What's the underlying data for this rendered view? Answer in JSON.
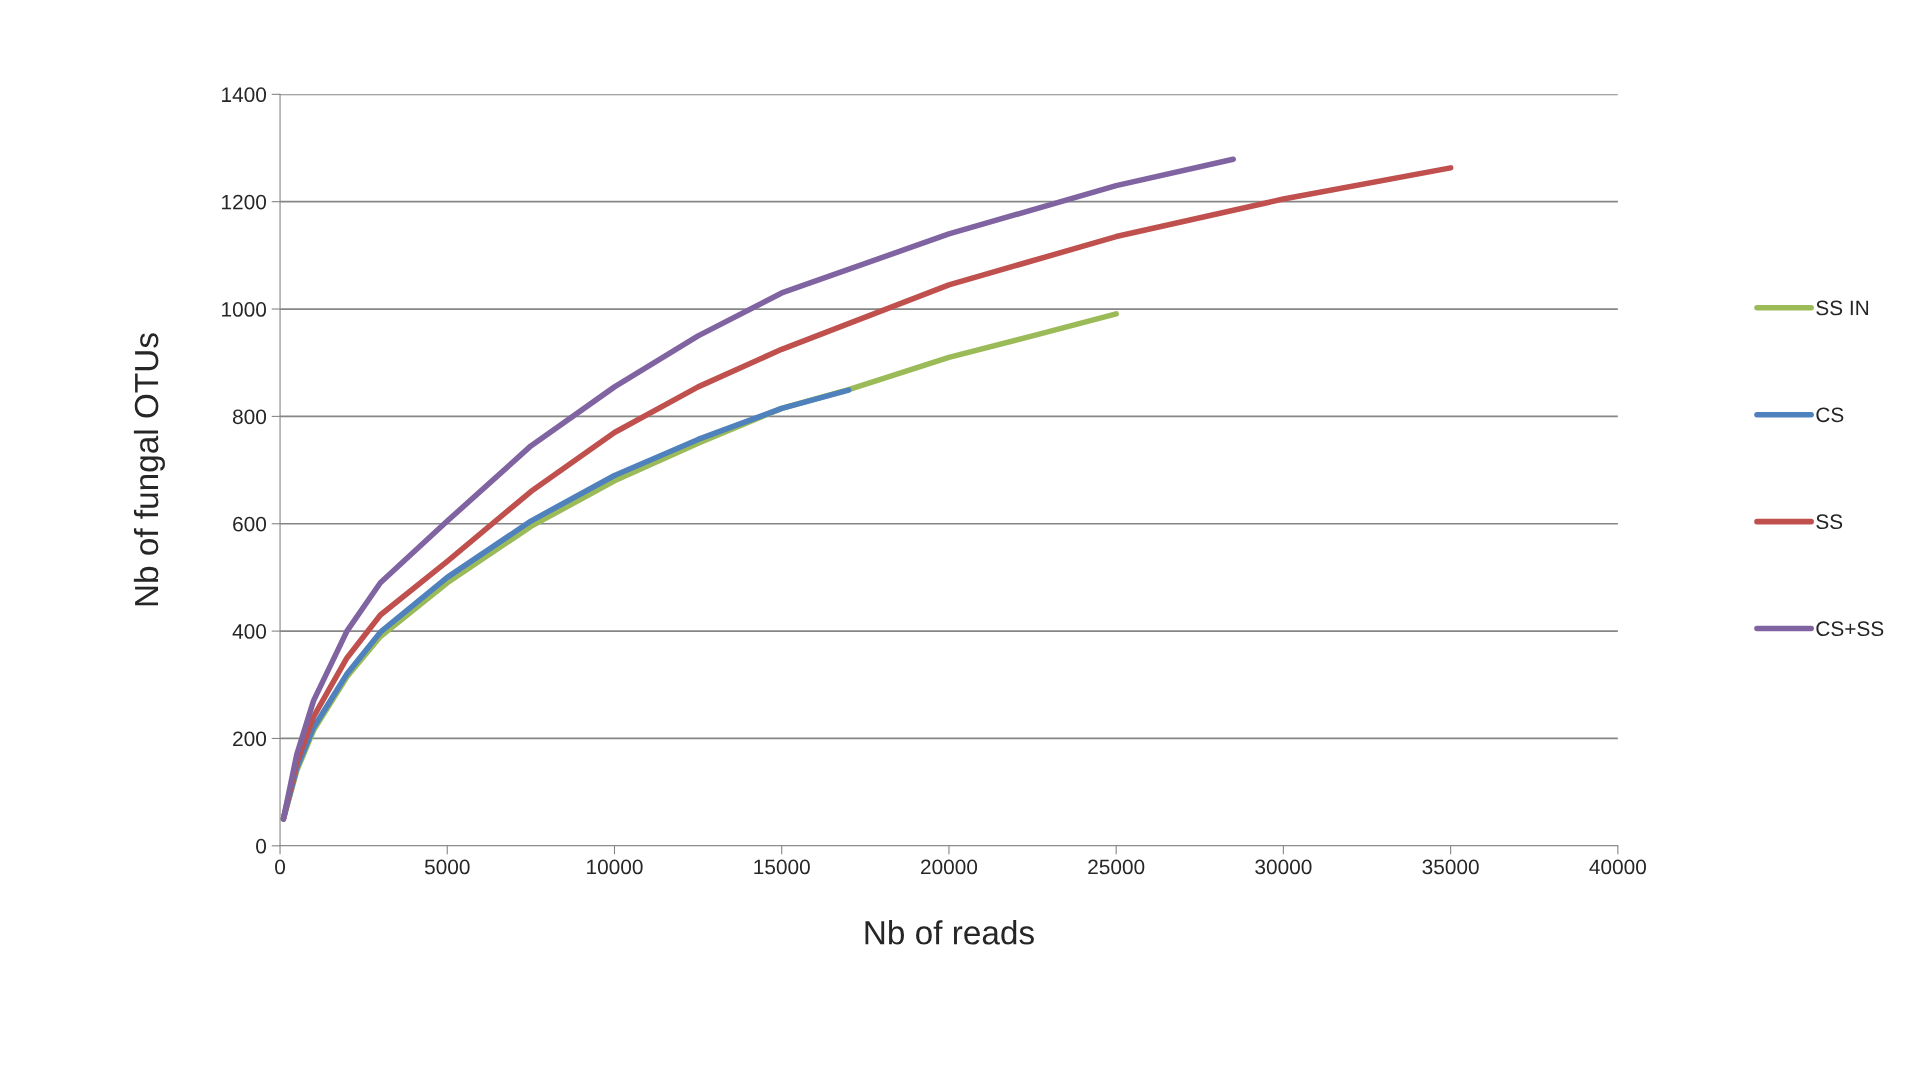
{
  "chart_data": {
    "type": "line",
    "xlabel": "Nb of reads",
    "ylabel": "Nb of fungal OTUs",
    "xlim": [
      0,
      40000
    ],
    "ylim": [
      0,
      1400
    ],
    "xticks": [
      0,
      5000,
      10000,
      15000,
      20000,
      25000,
      30000,
      35000,
      40000
    ],
    "yticks": [
      0,
      200,
      400,
      600,
      800,
      1000,
      1200,
      1400
    ],
    "grid": "y",
    "legend": "right",
    "marker": "none",
    "line_style": "solid",
    "series": [
      {
        "name": "SS IN",
        "color": "#9bbb59",
        "x": [
          100,
          500,
          1000,
          2000,
          3000,
          5000,
          7500,
          10000,
          12500,
          15000,
          17000,
          20000,
          22500,
          25000
        ],
        "values": [
          50,
          140,
          215,
          315,
          390,
          490,
          595,
          680,
          750,
          815,
          850,
          910,
          950,
          991
        ]
      },
      {
        "name": "CS",
        "color": "#4f81bd",
        "x": [
          100,
          500,
          1000,
          2000,
          3000,
          5000,
          7500,
          10000,
          12500,
          15000,
          17000
        ],
        "values": [
          50,
          145,
          220,
          320,
          398,
          500,
          605,
          690,
          757,
          815,
          849
        ]
      },
      {
        "name": "SS",
        "color": "#c0504d",
        "x": [
          100,
          500,
          1000,
          2000,
          3000,
          5000,
          7500,
          10000,
          12500,
          15000,
          20000,
          25000,
          30000,
          35000
        ],
        "values": [
          50,
          155,
          240,
          350,
          430,
          530,
          660,
          770,
          855,
          925,
          1045,
          1135,
          1205,
          1263
        ]
      },
      {
        "name": "CS+SS",
        "color": "#8064a2",
        "x": [
          100,
          500,
          1000,
          2000,
          3000,
          5000,
          7500,
          10000,
          12500,
          15000,
          20000,
          25000,
          28500
        ],
        "values": [
          50,
          170,
          270,
          400,
          490,
          605,
          745,
          855,
          950,
          1030,
          1140,
          1230,
          1279
        ]
      }
    ]
  }
}
